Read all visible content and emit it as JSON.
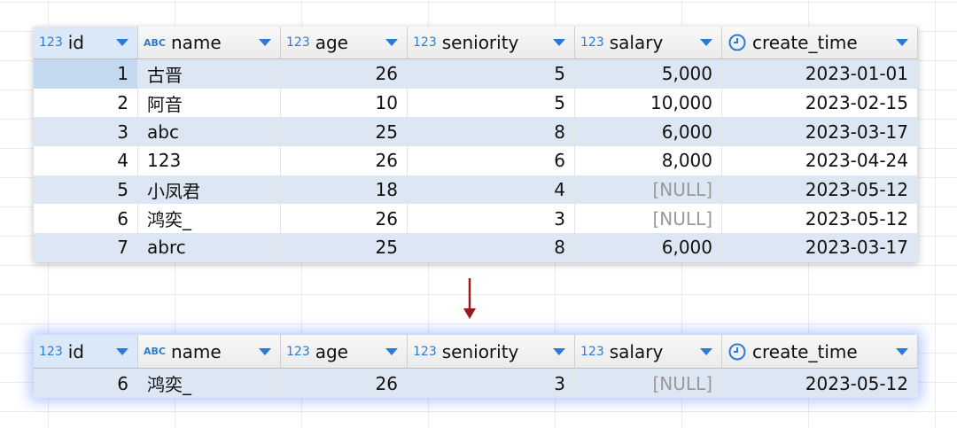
{
  "tables": [
    {
      "columns": [
        {
          "type": "123",
          "name": "id"
        },
        {
          "type": "ABC",
          "name": "name"
        },
        {
          "type": "123",
          "name": "age"
        },
        {
          "type": "123",
          "name": "seniority"
        },
        {
          "type": "123",
          "name": "salary"
        },
        {
          "name": "create_time"
        }
      ],
      "null_label": "[NULL]",
      "rows": [
        [
          "1",
          "古晋",
          "26",
          "5",
          "5,000",
          "2023-01-01"
        ],
        [
          "2",
          "阿音",
          "10",
          "5",
          "10,000",
          "2023-02-15"
        ],
        [
          "3",
          "abc",
          "25",
          "8",
          "6,000",
          "2023-03-17"
        ],
        [
          "4",
          "123",
          "26",
          "6",
          "8,000",
          "2023-04-24"
        ],
        [
          "5",
          "小凤君",
          "18",
          "4",
          null,
          "2023-05-12"
        ],
        [
          "6",
          "鸿奕_",
          "26",
          "3",
          null,
          "2023-05-12"
        ],
        [
          "7",
          "abrc",
          "25",
          "8",
          "6,000",
          "2023-03-17"
        ]
      ]
    },
    {
      "columns": [
        {
          "type": "123",
          "name": "id"
        },
        {
          "type": "ABC",
          "name": "name"
        },
        {
          "type": "123",
          "name": "age"
        },
        {
          "type": "123",
          "name": "seniority"
        },
        {
          "type": "123",
          "name": "salary"
        },
        {
          "name": "create_time"
        }
      ],
      "null_label": "[NULL]",
      "rows": [
        [
          "6",
          "鸿奕_",
          "26",
          "3",
          null,
          "2023-05-12"
        ]
      ]
    }
  ]
}
